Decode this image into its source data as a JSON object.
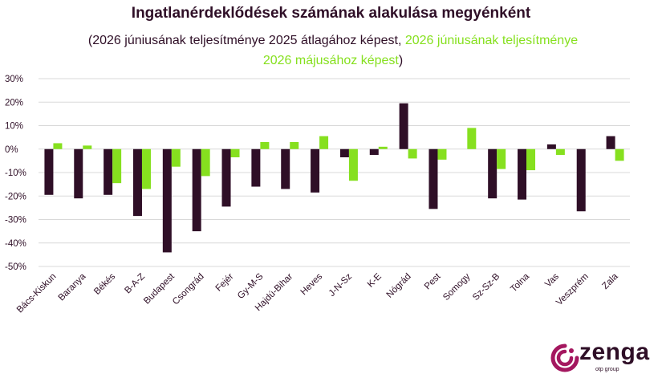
{
  "title": "Ingatlanérdeklődések számának alakulása megyénként",
  "subtitle_part1": "(2026 júniusának teljesítménye 2025 átlagához képest, ",
  "subtitle_part2": "2026 júniusának teljesítménye 2026 májusához képest",
  "subtitle_part3": ")",
  "logo": {
    "name": "zenga",
    "sub": "otp group",
    "icon": "zenga-swirl-icon"
  },
  "colors": {
    "series1": "#2f0f27",
    "series2": "#86e01f",
    "grid": "#d9d9d9",
    "text": "#2f0f27"
  },
  "chart_data": {
    "type": "bar",
    "categories": [
      "Bács-Kiskun",
      "Baranya",
      "Békés",
      "B-A-Z",
      "Budapest",
      "Csongrád",
      "Fejér",
      "Gy-M-S",
      "Hajdú-Bihar",
      "Heves",
      "J-N-Sz",
      "K-E",
      "Nógrád",
      "Pest",
      "Somogy",
      "Sz-Sz-B",
      "Tolna",
      "Vas",
      "Veszprém",
      "Zala"
    ],
    "series": [
      {
        "values": [
          -19.5,
          -21,
          -19.5,
          -28.5,
          -44,
          -35,
          -24.5,
          -16,
          -17,
          -18.5,
          -3.5,
          -2.5,
          19.5,
          -25.5,
          0,
          -21,
          -21.5,
          2,
          -26.5,
          5.5
        ]
      },
      {
        "values": [
          2.5,
          1.5,
          -14.5,
          -17,
          -7.5,
          -11.5,
          -3.5,
          3,
          3,
          5.5,
          -13.5,
          1,
          -4,
          -4.5,
          9,
          -8.5,
          -9,
          -2.5,
          0,
          -5
        ]
      }
    ],
    "ylim": [
      -50,
      30
    ],
    "yticks": [
      "30%",
      "20%",
      "10%",
      "0%",
      "-10%",
      "-20%",
      "-30%",
      "-40%",
      "-50%"
    ],
    "ytick_values": [
      30,
      20,
      10,
      0,
      -10,
      -20,
      -30,
      -40,
      -50
    ],
    "grid": true,
    "legend": "none"
  }
}
